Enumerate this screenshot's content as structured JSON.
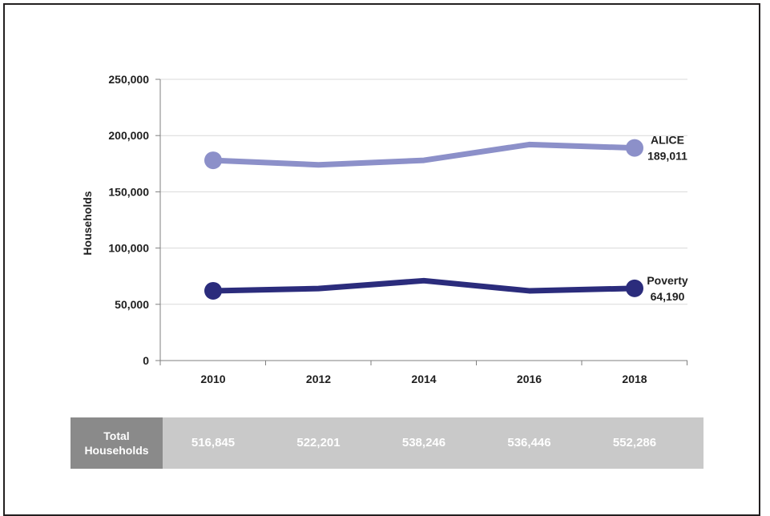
{
  "chart_data": {
    "type": "line",
    "x": [
      2010,
      2012,
      2014,
      2016,
      2018
    ],
    "ylabel": "Households",
    "xlabel": "",
    "ylim": [
      0,
      250000
    ],
    "yticks": [
      0,
      50000,
      100000,
      150000,
      200000,
      250000
    ],
    "ytick_labels": [
      "0",
      "50,000",
      "100,000",
      "150,000",
      "200,000",
      "250,000"
    ],
    "grid": true,
    "series": [
      {
        "name": "ALICE",
        "end_label": "189,011",
        "color": "#8c90c9",
        "values": [
          178000,
          174000,
          178000,
          192000,
          189011
        ]
      },
      {
        "name": "Poverty",
        "end_label": "64,190",
        "color": "#2b2c7c",
        "values": [
          62000,
          64000,
          71000,
          62000,
          64190
        ]
      }
    ]
  },
  "totals": {
    "header_line1": "Total",
    "header_line2": "Households",
    "values": [
      "516,845",
      "522,201",
      "538,246",
      "536,446",
      "552,286"
    ]
  },
  "colors": {
    "frame": "#231f20",
    "grid": "#d9d9d9",
    "axis": "#7f7f7f",
    "totals_head_bg": "#8a8a8a",
    "totals_body_bg": "#c9c9c9"
  }
}
